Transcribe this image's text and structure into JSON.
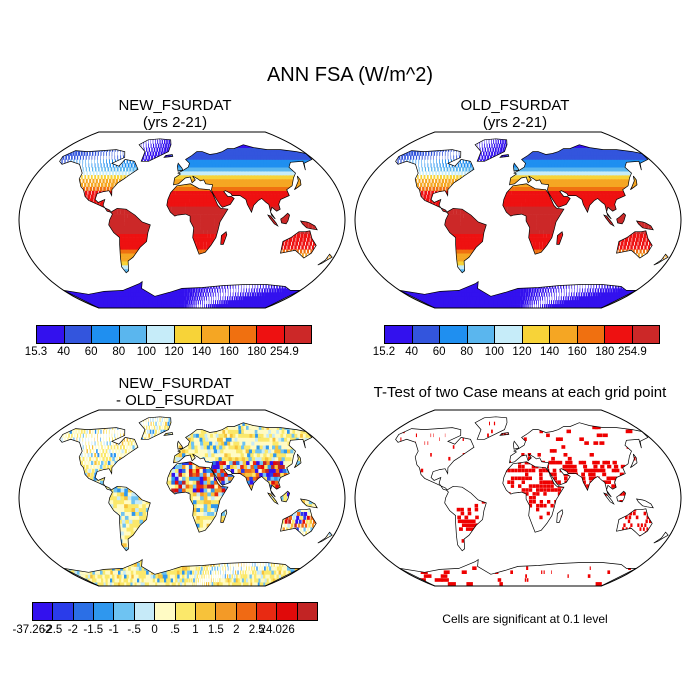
{
  "title": "ANN FSA (W/m^2)",
  "panels": {
    "new": {
      "title_line1": "NEW_FSURDAT",
      "title_line2": "(yrs 2-21)"
    },
    "old": {
      "title_line1": "OLD_FSURDAT",
      "title_line2": "(yrs 2-21)"
    },
    "diff": {
      "title_line1": "NEW_FSURDAT",
      "title_line2": "- OLD_FSURDAT"
    },
    "ttest": {
      "title": "T-Test of two Case means at each grid point",
      "note": "Cells are significant at 0.1 level"
    }
  },
  "colorbars": {
    "new": {
      "labels": [
        "15.3",
        "40",
        "60",
        "80",
        "100",
        "120",
        "140",
        "160",
        "180",
        "254.9"
      ],
      "colors": [
        "#3311ee",
        "#3355dd",
        "#1f8ff0",
        "#5ab6ee",
        "#c6ecf9",
        "#f7d338",
        "#f5a623",
        "#f07010",
        "#ee1111",
        "#cc2828"
      ]
    },
    "old": {
      "labels": [
        "15.2",
        "40",
        "60",
        "80",
        "100",
        "120",
        "140",
        "160",
        "180",
        "254.9"
      ],
      "colors": [
        "#3311ee",
        "#3355dd",
        "#1f8ff0",
        "#5ab6ee",
        "#c6ecf9",
        "#f7d338",
        "#f5a623",
        "#f07010",
        "#ee1111",
        "#cc2828"
      ]
    },
    "diff": {
      "labels": [
        "-37.262",
        "-2.5",
        "-2",
        "-1.5",
        "-1",
        "-.5",
        "0",
        ".5",
        "1",
        "1.5",
        "2",
        "2.5",
        "24.026"
      ],
      "colors": [
        "#3311ee",
        "#2a3cea",
        "#2b6fe6",
        "#2f97ee",
        "#6ec3f2",
        "#c6eaf8",
        "#fffbc4",
        "#fbe86a",
        "#f7c23a",
        "#f39a27",
        "#f06a14",
        "#e82a12",
        "#e00a0a",
        "#c22424"
      ]
    }
  },
  "colors": {
    "ocean": "#ffffff",
    "ttest_significant": "#ee0000"
  }
}
